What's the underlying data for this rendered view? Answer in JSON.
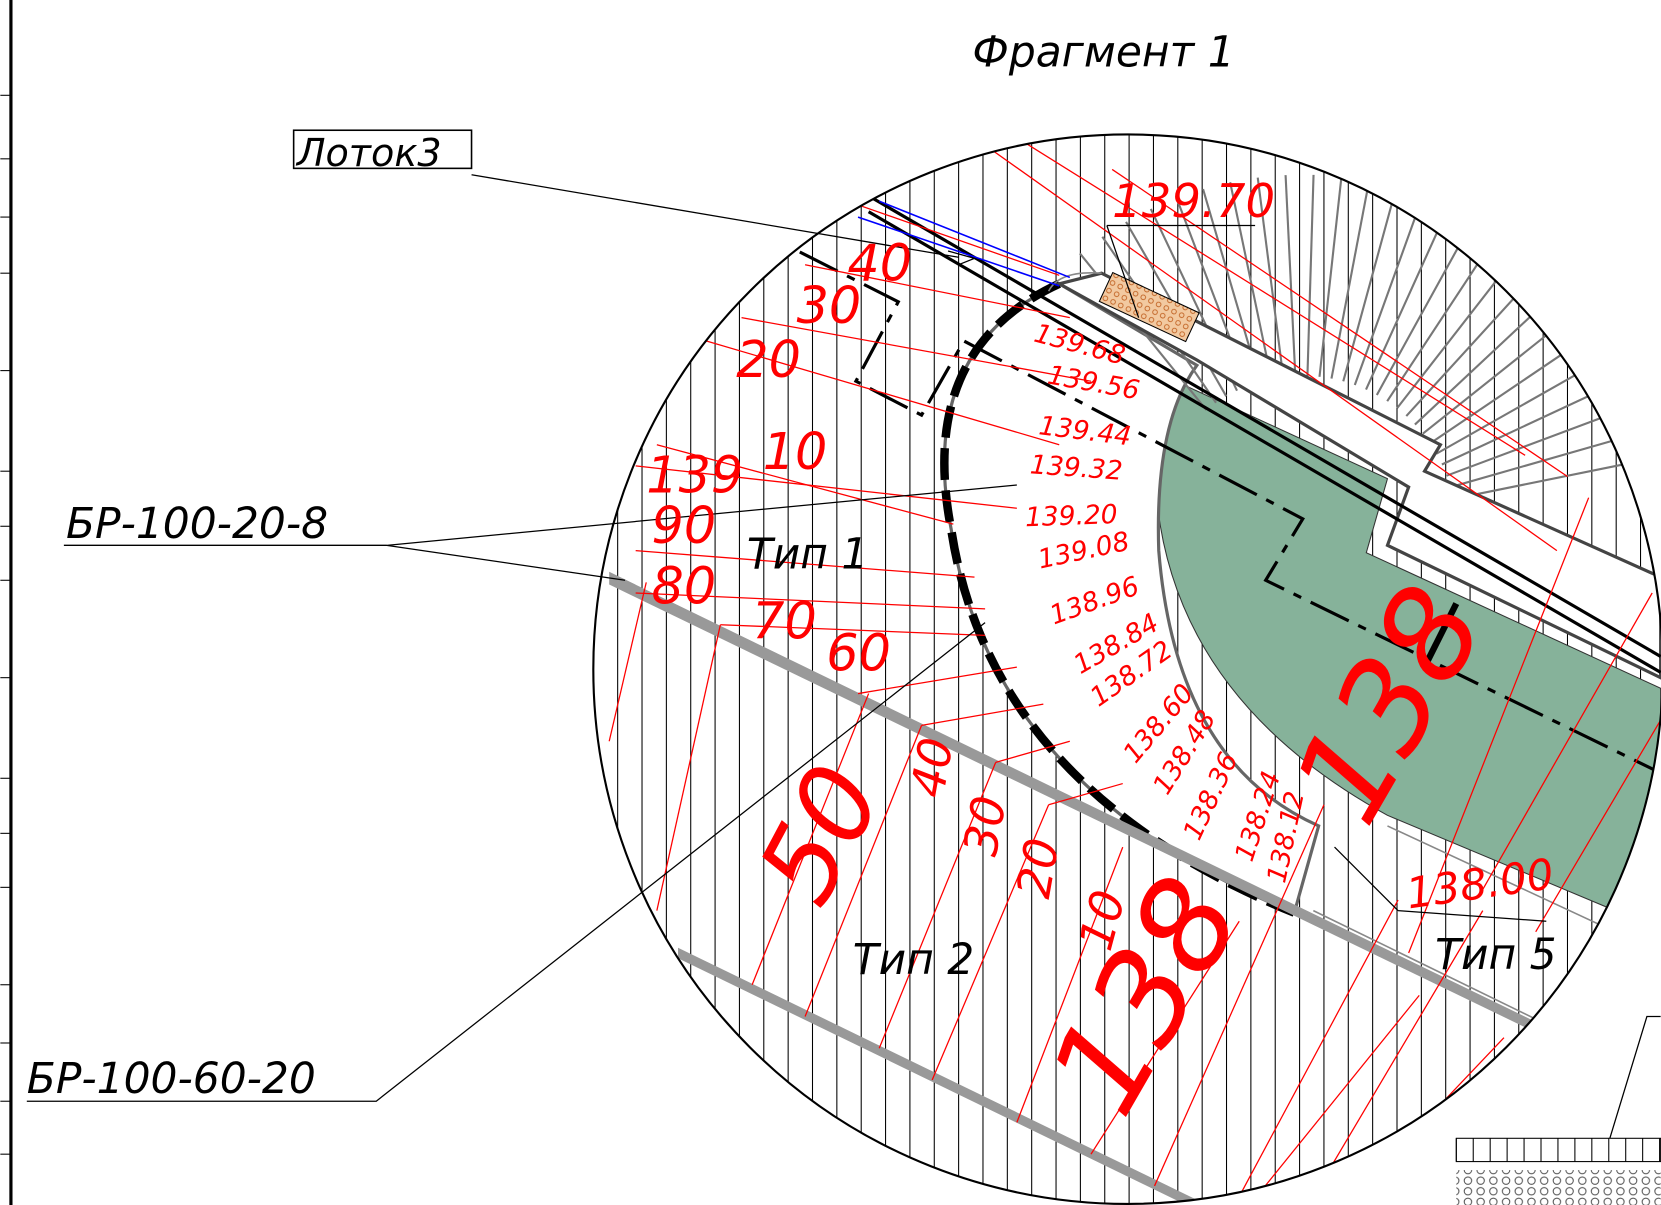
{
  "title": "Фрагмент 1",
  "callouts": [
    "Лоток3",
    "БР-100-20-8",
    "БР-100-60-20"
  ],
  "types": [
    "Тип 1",
    "Тип 2",
    "Тип 5"
  ],
  "top_elevation": "139.70",
  "step_elevations": [
    "139.68",
    "139.56",
    "139.44",
    "139.32",
    "139.20",
    "139.08",
    "138.96",
    "138.84",
    "138.72",
    "138.60",
    "138.48",
    "138.36",
    "138.24",
    "138.12"
  ],
  "bottom_elevation": "138.00",
  "contour_labels": [
    "40",
    "30",
    "20",
    "10",
    "139",
    "90",
    "80",
    "70",
    "60",
    "50",
    "40",
    "30",
    "20",
    "10"
  ],
  "major_contours": [
    "138",
    "138"
  ]
}
